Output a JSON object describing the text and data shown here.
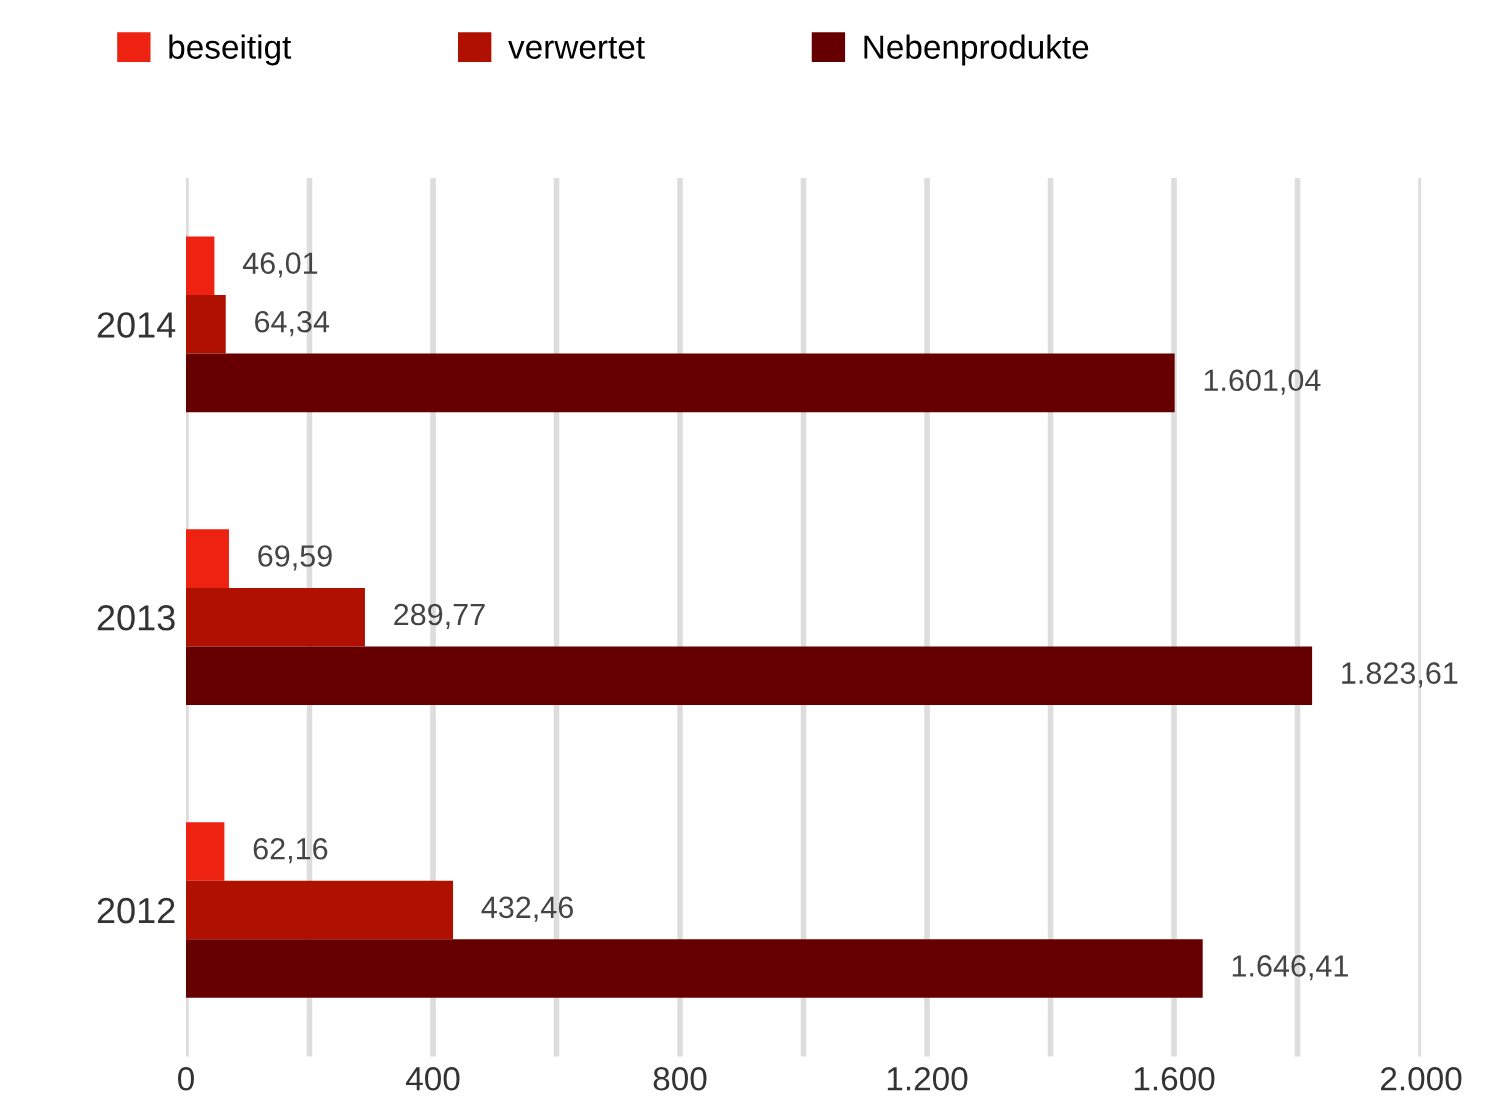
{
  "chart_data": {
    "type": "bar",
    "orientation": "horizontal",
    "categories": [
      "2014",
      "2013",
      "2012"
    ],
    "series": [
      {
        "name": "beseitigt",
        "color": "#ee2211",
        "values": [
          46.01,
          69.59,
          62.16
        ],
        "value_labels": [
          "46,01",
          "69,59",
          "62,16"
        ]
      },
      {
        "name": "verwertet",
        "color": "#b01000",
        "values": [
          64.34,
          289.77,
          432.46
        ],
        "value_labels": [
          "64,34",
          "289,77",
          "432,46"
        ]
      },
      {
        "name": "Nebenprodukte",
        "color": "#660000",
        "values": [
          1601.04,
          1823.61,
          1646.41
        ],
        "value_labels": [
          "1.601,04",
          "1.823,61",
          "1.646,41"
        ]
      }
    ],
    "xlim": [
      0,
      2000
    ],
    "xticks": [
      0,
      {
        "value": 200,
        "label": null
      },
      400,
      {
        "value": 600,
        "label": null
      },
      {
        "value": 800,
        "label": "800"
      },
      {
        "value": 1000,
        "label": null
      },
      {
        "value": 1200,
        "label": "1.200"
      },
      {
        "value": 1400,
        "label": null
      },
      {
        "value": 1600,
        "label": "1.600"
      },
      {
        "value": 1800,
        "label": null
      },
      {
        "value": 2000,
        "label": "2.000"
      }
    ],
    "grid": "x",
    "legend": "top left"
  }
}
